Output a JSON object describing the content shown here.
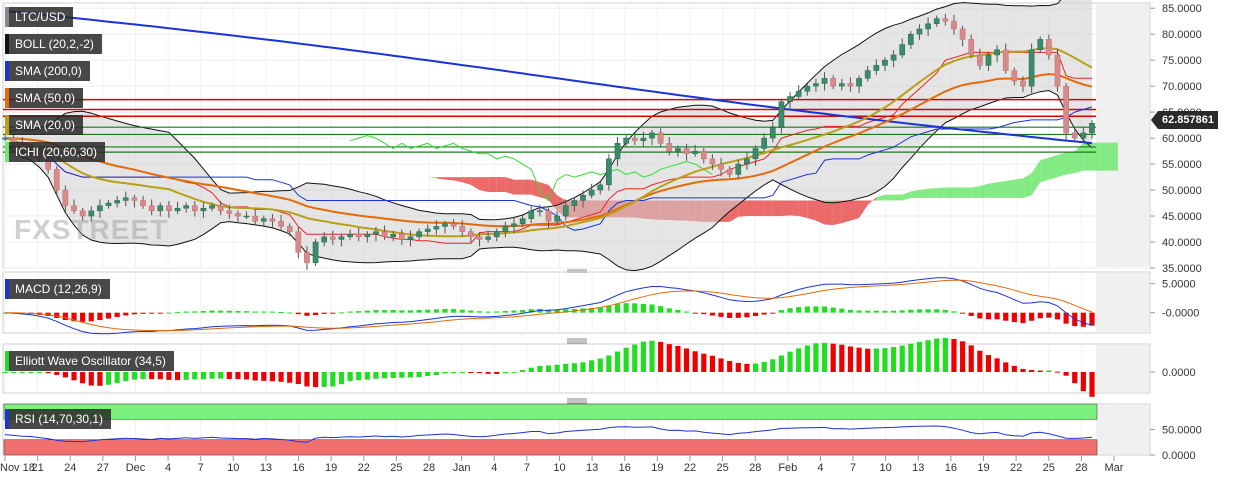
{
  "pair_label": "LTC/USD",
  "watermark": "FXSTREET",
  "last_price": "62.857861",
  "indicators": {
    "boll": "BOLL (20,2,-2)",
    "sma200": "SMA (200,0)",
    "sma50": "SMA (50,0)",
    "sma20": "SMA (20,0)",
    "ichi": "ICHI (20,60,30)",
    "macd": "MACD (12,26,9)",
    "ewo": "Elliott Wave Oscillator (34,5)",
    "rsi": "RSI (14,70,30,1)"
  },
  "colors": {
    "sma200": "#1a34d6",
    "sma50": "#e56a0a",
    "sma20": "#b8a018",
    "boll": "#111111",
    "ichi_green": "#6fe86f",
    "ichi_red": "#e85050",
    "hline_red": "#dd0000",
    "hline_green": "#1a7a1a",
    "up_candle": "#3b8b6a",
    "down_candle": "#d88a8a",
    "hist_pos": "#22dd22",
    "hist_neg": "#ee0000",
    "macd_line": "#1a34d6",
    "signal_line": "#e56a0a",
    "rsi_line": "#1a34d6",
    "rsi_overbought": "#7cf07c",
    "rsi_oversold": "#f07070"
  },
  "chart_data": [
    {
      "type": "candlestick",
      "name": "price",
      "y_ticks": [
        "85.0000",
        "80.0000",
        "75.0000",
        "70.0000",
        "65.0000",
        "60.0000",
        "55.0000",
        "50.0000",
        "45.0000",
        "40.0000",
        "35.0000"
      ],
      "ylim": [
        35,
        86
      ],
      "x_ticks": [
        "Nov 18",
        "21",
        "24",
        "27",
        "Dec",
        "4",
        "7",
        "10",
        "13",
        "16",
        "19",
        "22",
        "25",
        "28",
        "Jan",
        "4",
        "7",
        "10",
        "13",
        "16",
        "19",
        "22",
        "25",
        "28",
        "Feb",
        "4",
        "7",
        "10",
        "13",
        "16",
        "19",
        "22",
        "25",
        "28",
        "Mar"
      ],
      "horizontal_lines": {
        "red": [
          67.4,
          65.5,
          64.2
        ],
        "green": [
          62.1,
          60.7,
          58.3,
          57.3
        ]
      },
      "close": [
        60,
        59,
        58,
        57.5,
        56,
        54,
        50,
        47,
        46,
        45,
        46,
        47,
        47.5,
        48,
        48.5,
        48,
        47,
        46,
        47,
        46,
        46.5,
        47,
        46,
        46.5,
        47,
        46,
        45.5,
        45,
        45,
        44,
        44.5,
        44,
        43,
        42,
        38,
        36,
        40,
        41,
        40.5,
        41,
        41.5,
        41,
        41.5,
        42,
        41,
        41.5,
        40.5,
        41,
        42,
        42.5,
        43,
        43.5,
        43,
        42,
        41,
        40.5,
        41,
        42,
        43,
        43.5,
        44.5,
        46,
        46,
        44,
        45,
        47,
        48,
        49,
        50,
        51,
        56,
        59,
        60,
        59.5,
        60,
        61,
        59,
        57.5,
        58,
        57,
        57.5,
        56,
        55,
        54,
        53,
        55,
        56,
        58,
        60,
        62,
        67,
        68,
        69,
        70,
        70.5,
        71.5,
        70,
        70.5,
        70,
        71.5,
        73,
        74,
        75,
        76,
        78,
        80,
        81,
        82,
        83,
        82.5,
        81,
        79,
        76,
        74,
        76,
        77,
        73,
        71,
        70,
        77,
        79,
        76,
        70,
        61,
        60,
        61,
        62.86
      ]
    },
    {
      "type": "line",
      "name": "macd",
      "y_ticks": [
        "5.0000",
        "-0.0000"
      ],
      "ylim": [
        -3.5,
        7
      ]
    },
    {
      "type": "bar",
      "name": "elliott_wave_oscillator",
      "y_ticks": [
        "0.0000"
      ],
      "ylim": [
        -9,
        12
      ]
    },
    {
      "type": "line",
      "name": "rsi",
      "y_ticks": [
        "50.0000",
        "0.0000"
      ],
      "ylim": [
        0,
        100
      ],
      "overbought": 70,
      "oversold": 30
    }
  ]
}
